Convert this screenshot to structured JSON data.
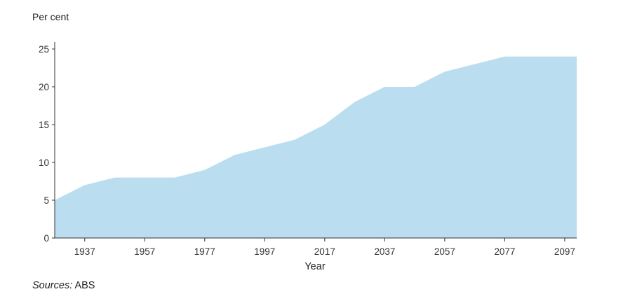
{
  "chart_data": {
    "type": "area",
    "title": "",
    "ylabel": "Per cent",
    "xlabel": "Year",
    "x": [
      1927,
      1937,
      1947,
      1957,
      1967,
      1977,
      1987,
      1997,
      2007,
      2017,
      2027,
      2037,
      2047,
      2057,
      2067,
      2077,
      2087,
      2097,
      2101
    ],
    "values": [
      5,
      7,
      8,
      8,
      8,
      9,
      11,
      12,
      13,
      15,
      18,
      20,
      20,
      22,
      23,
      24,
      24,
      24,
      24
    ],
    "xlim": [
      1927,
      2101
    ],
    "ylim": [
      0,
      25
    ],
    "xticks": [
      1937,
      1957,
      1977,
      1997,
      2017,
      2037,
      2057,
      2077,
      2097
    ],
    "yticks": [
      0,
      5,
      10,
      15,
      20,
      25
    ],
    "fill_color": "#badeef",
    "grid": false,
    "legend": "none"
  },
  "source": {
    "label": "Sources:",
    "text": "ABS"
  }
}
